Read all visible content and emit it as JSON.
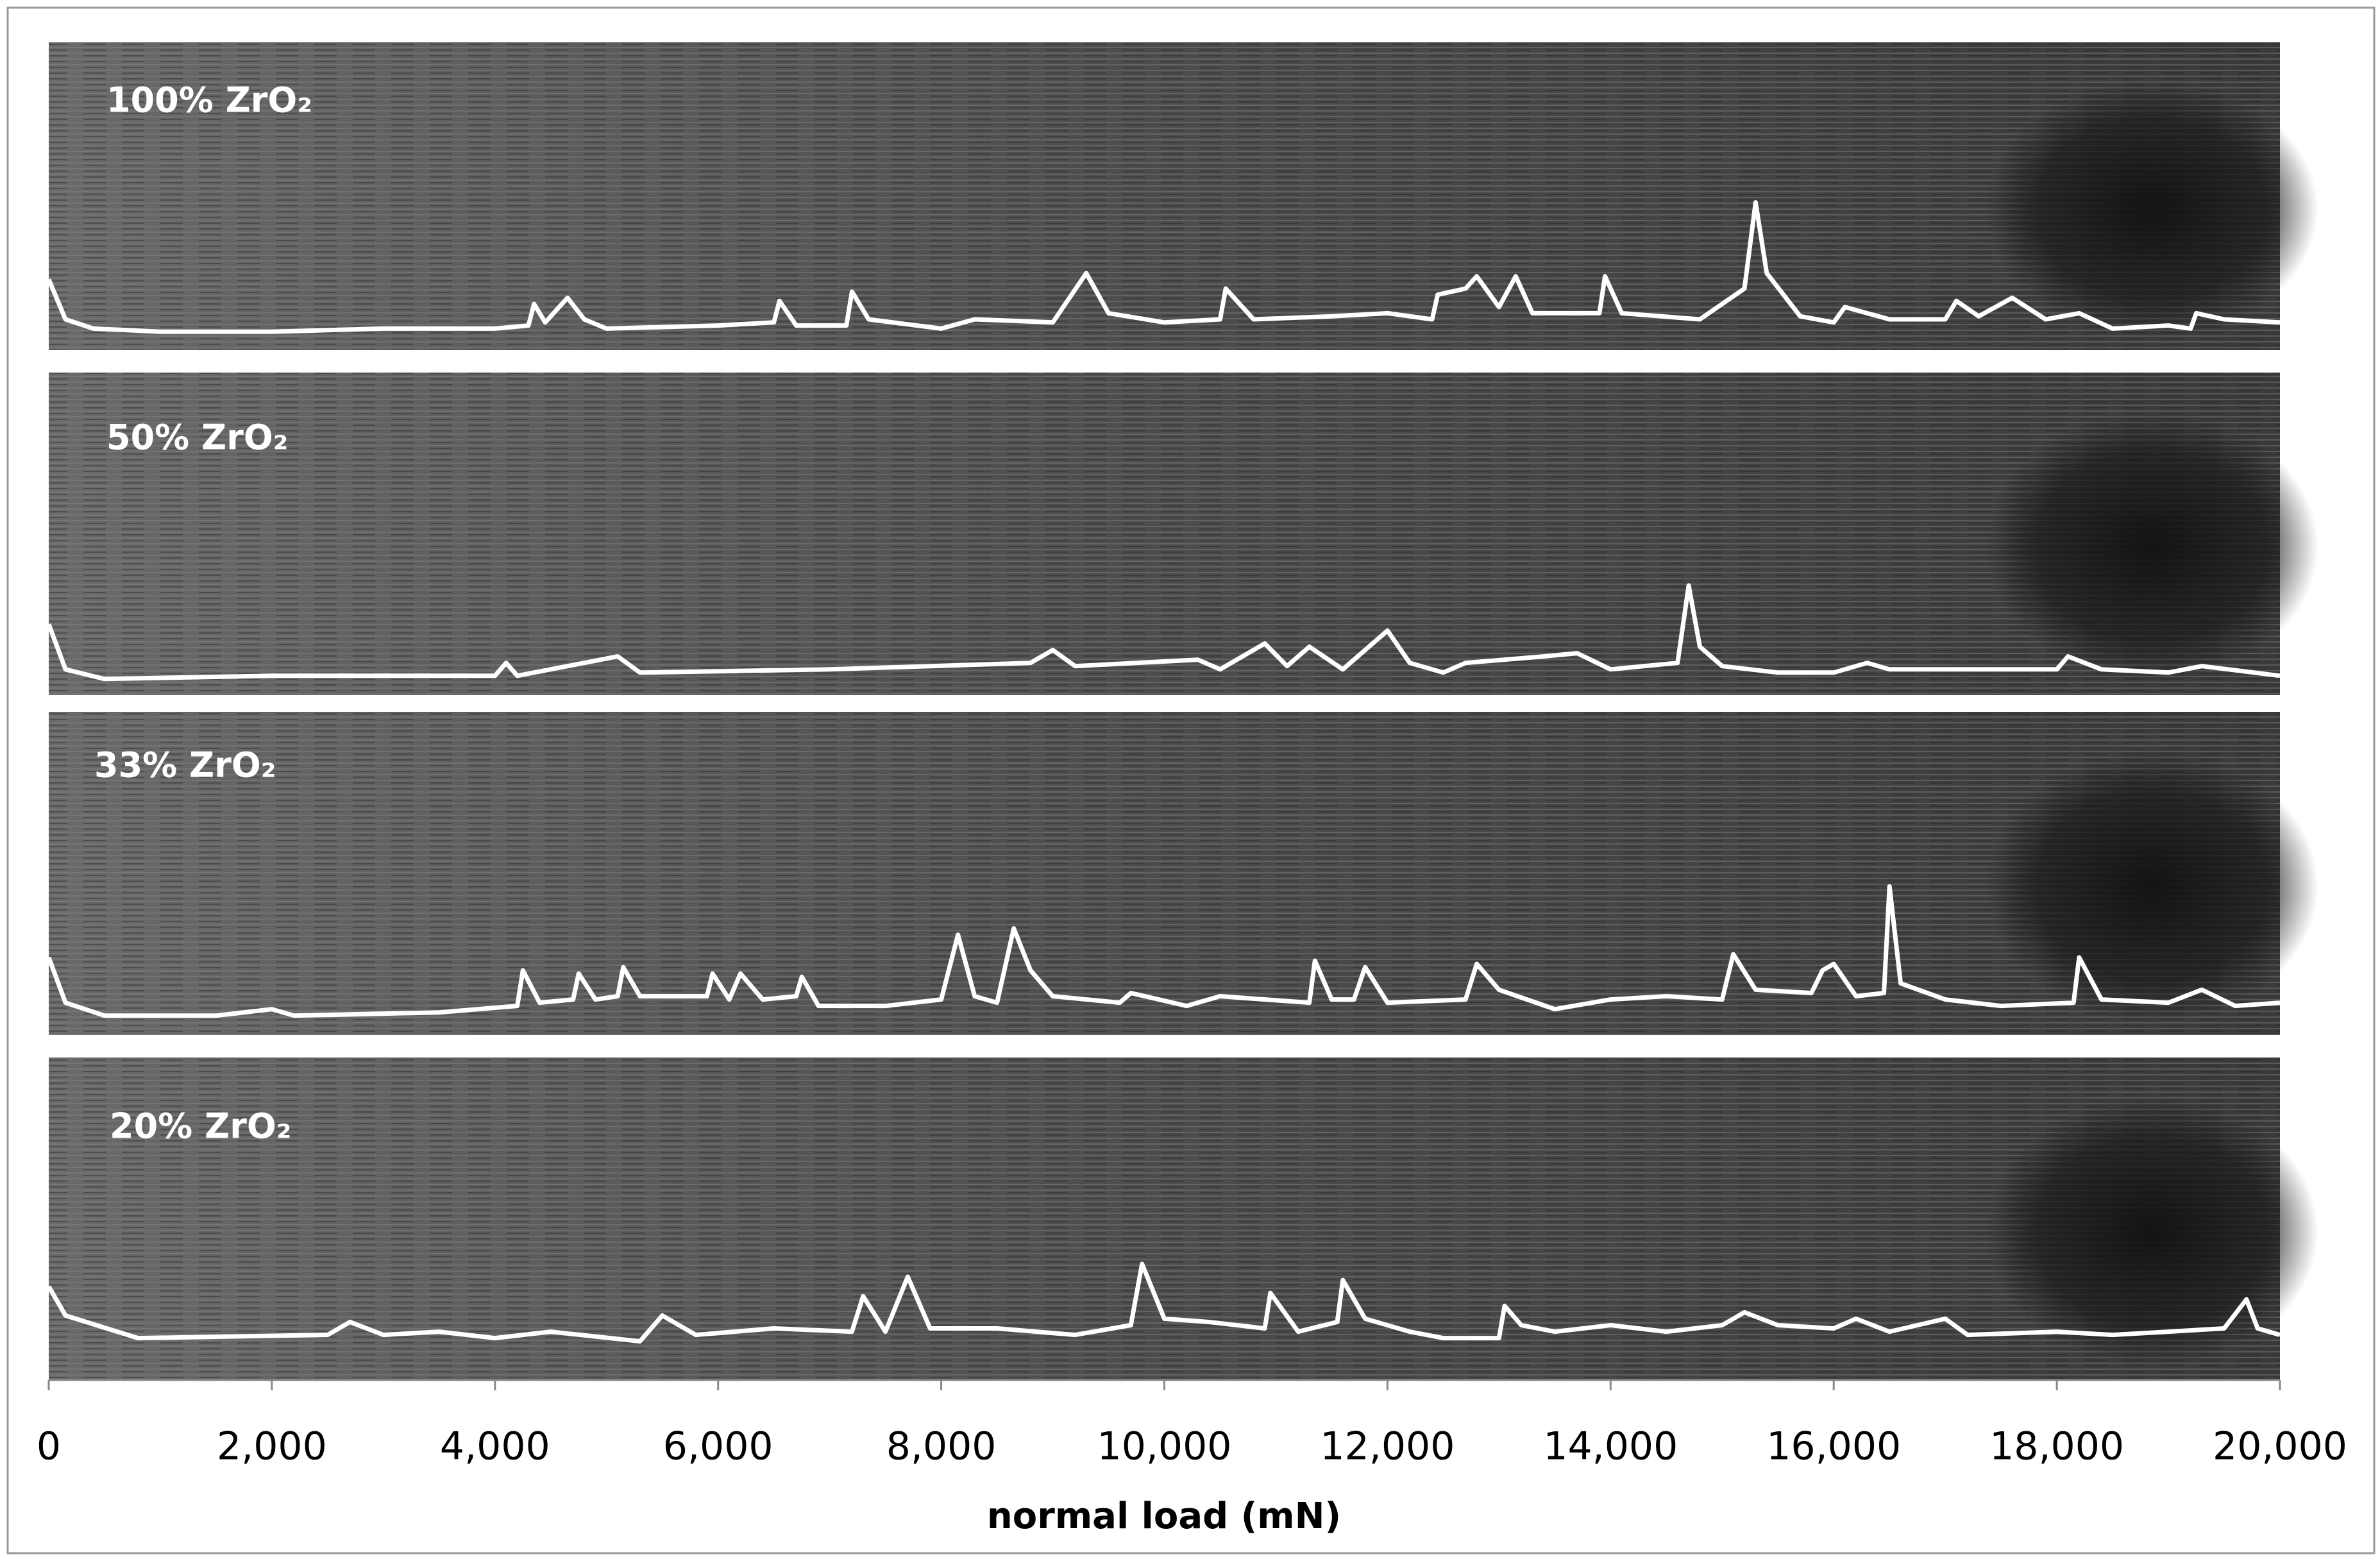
{
  "chart_data": {
    "type": "line",
    "xlabel": "normal load (mN)",
    "xlim": [
      0,
      20000
    ],
    "xticks": [
      0,
      {
        "value": 2000,
        "label": "2,000"
      },
      {
        "value": 4000,
        "label": "4,000"
      },
      {
        "value": 6000,
        "label": "6,000"
      },
      {
        "value": 8000,
        "label": "8,000"
      },
      {
        "value": 10000,
        "label": "10,000"
      },
      {
        "value": 12000,
        "label": "12,000"
      },
      {
        "value": 14000,
        "label": "14,000"
      },
      {
        "value": 16000,
        "label": "16,000"
      },
      {
        "value": 18000,
        "label": "18,000"
      },
      {
        "value": 20000,
        "label": "20,000"
      }
    ],
    "ylim": [
      0,
      100
    ],
    "series": [
      {
        "name": "100% ZrO₂",
        "color": "#ffffff",
        "x": [
          0,
          150,
          400,
          1000,
          2000,
          3000,
          4000,
          4300,
          4350,
          4450,
          4650,
          4800,
          5000,
          6000,
          6500,
          6550,
          6700,
          7150,
          7200,
          7350,
          8000,
          8300,
          9000,
          9300,
          9500,
          10000,
          10500,
          10550,
          10800,
          11500,
          12000,
          12400,
          12450,
          12700,
          12800,
          13000,
          13150,
          13300,
          13900,
          13950,
          14100,
          14800,
          15200,
          15300,
          15400,
          15700,
          16000,
          16100,
          16500,
          17000,
          17100,
          17300,
          17600,
          17900,
          18200,
          18500,
          19000,
          19200,
          19250,
          19500,
          20000
        ],
        "values": [
          23,
          10,
          7,
          6,
          6,
          7,
          7,
          8,
          15,
          9,
          17,
          10,
          7,
          8,
          9,
          16,
          8,
          8,
          19,
          10,
          7,
          10,
          9,
          25,
          12,
          9,
          10,
          20,
          10,
          11,
          12,
          10,
          18,
          20,
          24,
          14,
          24,
          12,
          12,
          24,
          12,
          10,
          20,
          48,
          25,
          11,
          9,
          14,
          10,
          10,
          16,
          11,
          17,
          10,
          12,
          7,
          8,
          7,
          12,
          10,
          9
        ]
      },
      {
        "name": "50% ZrO₂",
        "color": "#ffffff",
        "x": [
          0,
          150,
          500,
          2000,
          3000,
          4000,
          4100,
          4200,
          5100,
          5300,
          7000,
          8800,
          9000,
          9200,
          10300,
          10500,
          10900,
          11100,
          11300,
          11600,
          12000,
          12200,
          12500,
          12700,
          13400,
          13700,
          14000,
          14600,
          14700,
          14800,
          15000,
          15500,
          16000,
          16300,
          16500,
          17000,
          18000,
          18100,
          18400,
          19000,
          19300,
          20000
        ],
        "values": [
          22,
          8,
          5,
          6,
          6,
          6,
          10,
          6,
          12,
          7,
          8,
          10,
          14,
          9,
          11,
          8,
          16,
          9,
          15,
          8,
          20,
          10,
          7,
          10,
          12,
          13,
          8,
          10,
          34,
          15,
          9,
          7,
          7,
          10,
          8,
          8,
          8,
          12,
          8,
          7,
          9,
          6
        ]
      },
      {
        "name": "33% ZrO₂",
        "color": "#ffffff",
        "x": [
          0,
          150,
          500,
          1500,
          2000,
          2200,
          3500,
          4200,
          4250,
          4400,
          4700,
          4750,
          4900,
          5100,
          5150,
          5300,
          5900,
          5950,
          6100,
          6200,
          6400,
          6700,
          6750,
          6900,
          7500,
          8000,
          8150,
          8300,
          8500,
          8650,
          8800,
          9000,
          9600,
          9700,
          10200,
          10500,
          11300,
          11350,
          11500,
          11700,
          11800,
          12000,
          12700,
          12800,
          13000,
          13500,
          14000,
          14500,
          15000,
          15100,
          15300,
          15800,
          15900,
          16000,
          16200,
          16450,
          16500,
          16600,
          17000,
          17500,
          18150,
          18200,
          18400,
          19000,
          19300,
          19600,
          20000
        ],
        "values": [
          24,
          10,
          6,
          6,
          8,
          6,
          7,
          9,
          20,
          10,
          11,
          19,
          11,
          12,
          21,
          12,
          12,
          19,
          11,
          19,
          11,
          12,
          18,
          9,
          9,
          11,
          31,
          12,
          10,
          33,
          20,
          12,
          10,
          13,
          9,
          12,
          10,
          23,
          11,
          11,
          21,
          10,
          11,
          22,
          14,
          8,
          11,
          12,
          11,
          25,
          14,
          13,
          20,
          22,
          12,
          13,
          46,
          16,
          11,
          9,
          10,
          24,
          11,
          10,
          14,
          9,
          10
        ]
      },
      {
        "name": "20% ZrO₂",
        "color": "#ffffff",
        "x": [
          0,
          150,
          800,
          2500,
          2700,
          3000,
          3500,
          4000,
          4500,
          5300,
          5500,
          5800,
          6500,
          7200,
          7300,
          7500,
          7700,
          7900,
          8500,
          9200,
          9700,
          9800,
          10000,
          10400,
          10900,
          10950,
          11200,
          11550,
          11600,
          11800,
          12200,
          12500,
          13000,
          13050,
          13200,
          13500,
          14000,
          14500,
          15000,
          15200,
          15500,
          16000,
          16200,
          16500,
          17000,
          17200,
          18000,
          18500,
          19000,
          19500,
          19700,
          19800,
          20000
        ],
        "values": [
          29,
          20,
          13,
          14,
          18,
          14,
          15,
          13,
          15,
          12,
          20,
          14,
          16,
          15,
          26,
          15,
          32,
          16,
          16,
          14,
          17,
          36,
          19,
          18,
          16,
          27,
          15,
          18,
          31,
          19,
          15,
          13,
          13,
          23,
          17,
          15,
          17,
          15,
          17,
          21,
          17,
          16,
          19,
          15,
          19,
          14,
          15,
          14,
          15,
          16,
          25,
          16,
          14
        ]
      }
    ]
  }
}
